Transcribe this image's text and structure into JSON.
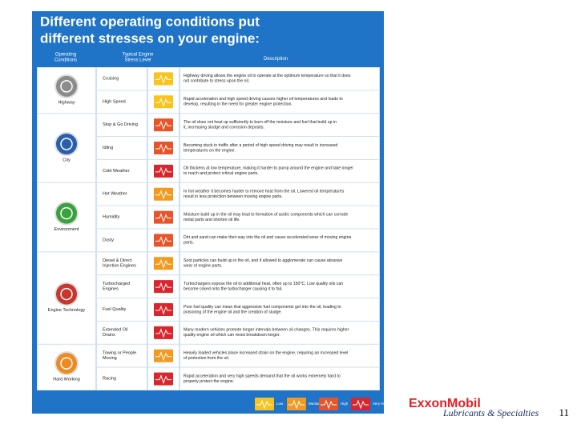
{
  "slide": {
    "title_line1": "Different operating conditions put",
    "title_line2": "different stresses on your engine:",
    "headers": {
      "conditions": "Operating Conditions",
      "stress": "Typical Engine Stress Level",
      "description": "Description"
    },
    "legend": [
      {
        "label": "Low",
        "color": "#f7c31c"
      },
      {
        "label": "Medium",
        "color": "#f39a1e"
      },
      {
        "label": "High",
        "color": "#e8542a"
      },
      {
        "label": "Very High",
        "color": "#d8262c"
      }
    ],
    "groups": [
      {
        "label": "Highway",
        "color": "#8c8c8c",
        "rows": 2
      },
      {
        "label": "City",
        "color": "#2a5fb0",
        "rows": 3
      },
      {
        "label": "Environment",
        "color": "#3aa13f",
        "rows": 3
      },
      {
        "label": "Engine Technology",
        "color": "#c8372d",
        "rows": 4
      },
      {
        "label": "Hard Working",
        "color": "#ef8a22",
        "rows": 2
      }
    ],
    "rows": [
      {
        "condition": "Cruising",
        "level": 0,
        "description": "Highway driving allows the engine oil to operate at the optimum temperature so that it does not contribute to stress upon the oil."
      },
      {
        "condition": "High Speed",
        "level": 0,
        "description": "Rapid acceleration and high speed driving causes higher oil temperatures and loads to develop, resulting in the need for greater engine protection."
      },
      {
        "condition": "Stop & Go Driving",
        "level": 2,
        "description": "The oil does not heat up sufficiently to burn off the moisture and fuel that build up in it, increasing sludge and corrosion deposits."
      },
      {
        "condition": "Idling",
        "level": 2,
        "description": "Becoming stuck in traffic after a period of high speed driving may result in increased temperatures on the engine."
      },
      {
        "condition": "Cold Weather",
        "level": 3,
        "description": "Oil thickens at low temperature, making it harder to pump around the engine and take longer to reach and protect critical engine parts."
      },
      {
        "condition": "Hot Weather",
        "level": 1,
        "description": "In hot weather it becomes harder to remove heat from the oil. Lowered oil temperatures result in less protection between moving engine parts."
      },
      {
        "condition": "Humidity",
        "level": 2,
        "description": "Moisture build up in the oil may lead to formation of acidic components which can corrode metal parts and shorten oil life."
      },
      {
        "condition": "Dusty",
        "level": 2,
        "description": "Dirt and sand can make their way into the oil and cause accelerated wear of moving engine parts."
      },
      {
        "condition": "Diesel & Direct Injection Engines",
        "level": 1,
        "description": "Soot particles can build up in the oil, and if allowed to agglomerate can cause abrasive wear of engine parts."
      },
      {
        "condition": "Turbocharged Engines",
        "level": 3,
        "description": "Turbochargers expose the oil to additional heat, often up to 150°C. Low quality oils can become coked onto the turbocharger causing it to fail."
      },
      {
        "condition": "Fuel Quality",
        "level": 3,
        "description": "Poor fuel quality can mean that aggressive fuel components get into the oil, leading to poisoning of the engine oil and the creation of sludge."
      },
      {
        "condition": "Extended Oil Drains",
        "level": 3,
        "description": "Many modern vehicles promote longer intervals between oil changes. This requires higher quality engine oil which can resist breakdown longer."
      },
      {
        "condition": "Towing or People Moving",
        "level": 1,
        "description": "Heavily loaded vehicles place increased strain on the engine, requiring an increased level of protection from the oil."
      },
      {
        "condition": "Racing",
        "level": 3,
        "description": "Rapid acceleration and very high speeds demand that the oil works extremely hard to properly protect the engine."
      }
    ]
  },
  "footer": {
    "brand": "ExxonMobil",
    "subtitle": "Lubricants & Specialties",
    "page": "11"
  }
}
